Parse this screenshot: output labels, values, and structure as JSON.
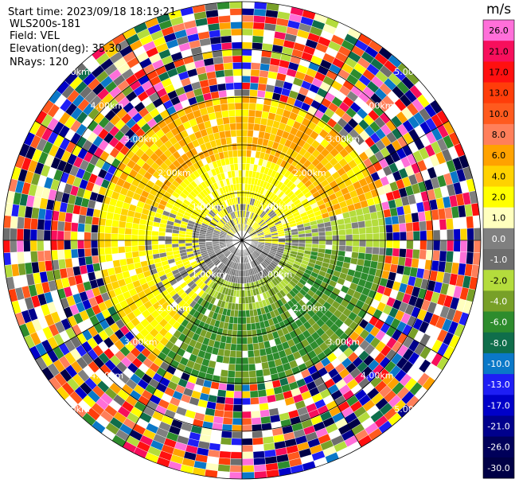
{
  "header": {
    "start_time": "Start time: 2023/09/18 18:19:21",
    "station": "WLS200s-181",
    "field": "Field: VEL",
    "elevation": "Elevation(deg): 35.30",
    "nrays": "NRays: 120"
  },
  "colorbar": {
    "unit": "m/s",
    "ticks": [
      "26.0",
      "21.0",
      "17.0",
      "13.0",
      "10.0",
      "8.0",
      "6.0",
      "4.0",
      "2.0",
      "1.0",
      "0.0",
      "-1.0",
      "-2.0",
      "-4.0",
      "-6.0",
      "-8.0",
      "-10.0",
      "-13.0",
      "-17.0",
      "-21.0",
      "-26.0",
      "-30.0"
    ],
    "colors": [
      "#ff6fd9",
      "#f70f5c",
      "#ff1010",
      "#ff3d0a",
      "#ff5a1e",
      "#ff7f5a",
      "#ffa200",
      "#ffd200",
      "#ffff00",
      "#ffffbe",
      "#808080",
      "#6e6e6e",
      "#b4dc3c",
      "#78a028",
      "#2d8c2d",
      "#0f6e4b",
      "#0a78c8",
      "#1e1ef5",
      "#0000c8",
      "#00008c",
      "#00005a",
      "#000046"
    ]
  },
  "chart_data": {
    "type": "heatmap",
    "subtype": "PPI radar sweep",
    "field": "VEL",
    "units": "m/s",
    "nrays": 120,
    "elevation_deg": 35.3,
    "range_rings_km": [
      1.0,
      2.0,
      3.0,
      4.0,
      5.0
    ],
    "ring_labels": [
      "1.00km",
      "2.00km",
      "3.00km",
      "4.00km",
      "5.00km"
    ],
    "spokes": 12,
    "sectors": [
      {
        "region": "north, 0-1.8 km",
        "velocity_ms": [
          0,
          2
        ]
      },
      {
        "region": "north, 1.8-3 km",
        "velocity_ms": [
          4,
          6
        ]
      },
      {
        "region": "south-east, 0-3 km",
        "velocity_ms": [
          -6,
          -2
        ]
      },
      {
        "region": "south-west, 0-1 km",
        "velocity_ms": [
          -1,
          0
        ]
      },
      {
        "region": "beyond ~3 km",
        "velocity_ms": "noise (all colors)"
      }
    ]
  }
}
